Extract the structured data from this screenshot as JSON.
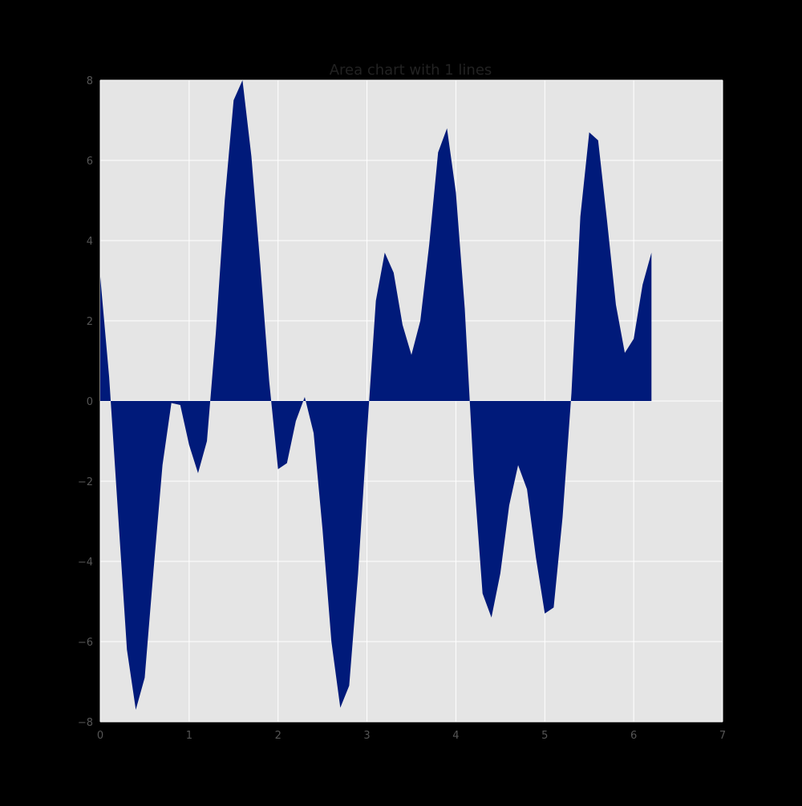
{
  "chart_data": {
    "type": "area",
    "title": "Area chart with 1 lines",
    "xlabel": "",
    "ylabel": "",
    "xlim": [
      0,
      7
    ],
    "ylim": [
      -8,
      8
    ],
    "xticks": [
      0,
      1,
      2,
      3,
      4,
      5,
      6,
      7
    ],
    "yticks": [
      -8,
      -6,
      -4,
      -2,
      0,
      2,
      4,
      6,
      8
    ],
    "xtick_labels": [
      "0",
      "1",
      "2",
      "3",
      "4",
      "5",
      "6",
      "7"
    ],
    "ytick_labels": [
      "−8",
      "−6",
      "−4",
      "−2",
      "0",
      "2",
      "4",
      "6",
      "8"
    ],
    "grid": true,
    "legend": "none",
    "colors": {
      "figure_background": "#000000",
      "plot_background": "#e5e5e5",
      "fill": "#001a7a",
      "grid": "#ffffff"
    },
    "series": [
      {
        "x": [
          0.0,
          0.1,
          0.2,
          0.3,
          0.4,
          0.5,
          0.6,
          0.7,
          0.8,
          0.9,
          1.0,
          1.1,
          1.2,
          1.3,
          1.4,
          1.5,
          1.6,
          1.7,
          1.8,
          1.9,
          2.0,
          2.1,
          2.2,
          2.3,
          2.4,
          2.5,
          2.6,
          2.7,
          2.8,
          2.9,
          3.0,
          3.1,
          3.2,
          3.3,
          3.4,
          3.5,
          3.6,
          3.7,
          3.8,
          3.9,
          4.0,
          4.1,
          4.2,
          4.3,
          4.4,
          4.5,
          4.6,
          4.7,
          4.8,
          4.9,
          5.0,
          5.1,
          5.2,
          5.3,
          5.4,
          5.5,
          5.6,
          5.7,
          5.8,
          5.9,
          6.0,
          6.1,
          6.2
        ],
        "y": [
          3.1,
          0.6,
          -2.8,
          -6.2,
          -7.7,
          -6.9,
          -4.2,
          -1.6,
          -0.05,
          -0.1,
          -1.1,
          -1.8,
          -1.0,
          1.7,
          5.0,
          7.5,
          8.0,
          6.1,
          3.4,
          0.5,
          -1.7,
          -1.55,
          -0.5,
          0.1,
          -0.8,
          -3.2,
          -6.0,
          -7.65,
          -7.1,
          -4.3,
          -0.8,
          2.5,
          3.7,
          3.2,
          1.9,
          1.15,
          2.0,
          3.9,
          6.2,
          6.8,
          5.2,
          2.3,
          -1.8,
          -4.8,
          -5.4,
          -4.3,
          -2.6,
          -1.6,
          -2.2,
          -3.9,
          -5.3,
          -5.15,
          -2.9,
          0.2,
          4.6,
          6.7,
          6.5,
          4.5,
          2.4,
          1.2,
          1.55,
          2.9,
          3.7
        ]
      }
    ]
  }
}
